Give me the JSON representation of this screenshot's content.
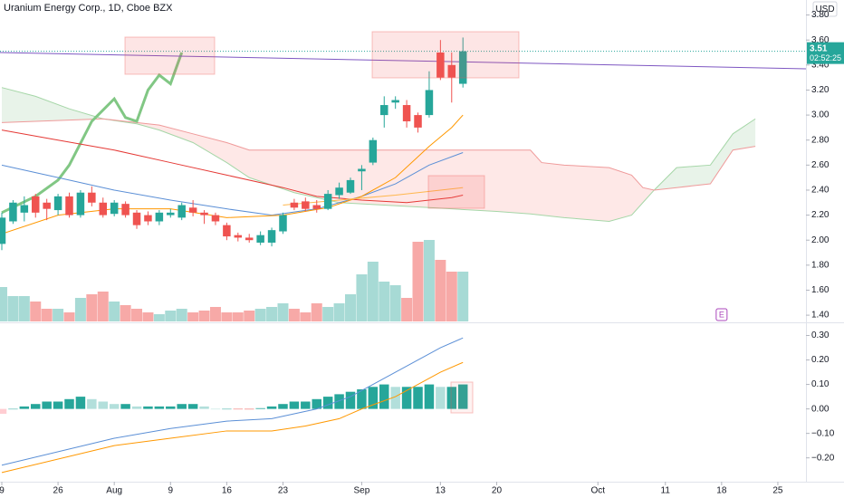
{
  "chart_data": [
    {
      "type": "candlestick",
      "title": "Uranium Energy Corp., 1D, Cboe BZX",
      "currency": "USD",
      "up_color": "#26a69a",
      "down_color": "#ef5350",
      "volume_up_color": "#a7dad5",
      "volume_down_color": "#f7a9a7",
      "x": [
        0,
        1,
        2,
        3,
        4,
        5,
        6,
        7,
        8,
        9,
        10,
        11,
        12,
        13,
        14,
        15,
        16,
        17,
        18,
        19,
        20,
        21,
        22,
        23,
        24,
        25,
        26,
        27,
        28,
        29,
        30,
        31,
        32,
        33,
        34,
        35,
        36,
        37,
        38,
        39,
        40,
        41
      ],
      "open": [
        1.97,
        2.15,
        2.22,
        2.35,
        2.3,
        2.24,
        2.35,
        2.2,
        2.38,
        2.3,
        2.21,
        2.29,
        2.22,
        2.2,
        2.15,
        2.2,
        2.18,
        2.26,
        2.22,
        2.2,
        2.12,
        2.04,
        2.02,
        1.98,
        1.98,
        2.07,
        2.3,
        2.31,
        2.28,
        2.25,
        2.36,
        2.38,
        2.55,
        2.62,
        3.0,
        3.1,
        3.08,
        3.0,
        3.0,
        3.5,
        3.4,
        3.25
      ],
      "high": [
        2.22,
        2.32,
        2.35,
        2.37,
        2.33,
        2.37,
        2.38,
        2.4,
        2.43,
        2.34,
        2.32,
        2.31,
        2.24,
        2.23,
        2.24,
        2.25,
        2.3,
        2.32,
        2.24,
        2.22,
        2.14,
        2.06,
        2.05,
        2.07,
        2.1,
        2.22,
        2.33,
        2.34,
        2.32,
        2.4,
        2.46,
        2.5,
        2.6,
        2.82,
        3.15,
        3.15,
        3.12,
        3.02,
        3.35,
        3.6,
        3.5,
        3.62
      ],
      "low": [
        1.92,
        2.13,
        2.15,
        2.18,
        2.16,
        2.2,
        2.18,
        2.18,
        2.27,
        2.18,
        2.19,
        2.18,
        2.09,
        2.12,
        2.12,
        2.18,
        2.16,
        2.19,
        2.13,
        2.12,
        2.0,
        1.99,
        1.98,
        1.96,
        1.95,
        2.05,
        2.24,
        2.23,
        2.22,
        2.24,
        2.33,
        2.37,
        2.4,
        2.6,
        2.9,
        3.05,
        2.9,
        2.86,
        2.98,
        3.28,
        3.1,
        3.22
      ],
      "close": [
        2.18,
        2.3,
        2.28,
        2.22,
        2.25,
        2.35,
        2.2,
        2.38,
        2.3,
        2.2,
        2.3,
        2.2,
        2.12,
        2.15,
        2.22,
        2.22,
        2.28,
        2.22,
        2.2,
        2.15,
        2.03,
        2.02,
        2.0,
        2.04,
        2.08,
        2.2,
        2.26,
        2.25,
        2.25,
        2.37,
        2.42,
        2.48,
        2.57,
        2.8,
        3.08,
        3.12,
        2.95,
        2.9,
        3.2,
        3.3,
        3.3,
        3.51
      ],
      "volume": [
        3.8,
        2.8,
        2.8,
        2.2,
        1.4,
        1.4,
        1.0,
        2.6,
        3.0,
        3.3,
        2.2,
        1.8,
        1.4,
        1.0,
        0.8,
        1.2,
        1.4,
        1.0,
        1.2,
        1.6,
        1.0,
        1.0,
        1.2,
        1.4,
        1.6,
        2.0,
        1.4,
        1.0,
        2.0,
        1.6,
        2.0,
        3.0,
        5.2,
        6.6,
        4.4,
        4.0,
        2.6,
        8.8,
        9.0,
        6.8,
        5.5,
        5.5
      ],
      "cloud": {
        "up_color": "rgba(67,160,71,0.12)",
        "down_color": "rgba(244,67,54,0.12)",
        "up_line": "#a5d6a7",
        "down_line": "#ef9a9a",
        "x": [
          0,
          3,
          6,
          9,
          12,
          14,
          17,
          20,
          22,
          26,
          30,
          36,
          40,
          44,
          47,
          48,
          50,
          54,
          56,
          57,
          58,
          60,
          63,
          65,
          67
        ],
        "span_a": [
          3.22,
          3.15,
          3.05,
          2.97,
          2.93,
          2.88,
          2.78,
          2.62,
          2.5,
          2.38,
          2.3,
          2.27,
          2.25,
          2.23,
          2.21,
          2.2,
          2.18,
          2.15,
          2.2,
          2.3,
          2.4,
          2.58,
          2.6,
          2.85,
          2.97
        ],
        "span_b": [
          2.94,
          2.95,
          2.96,
          2.97,
          2.94,
          2.92,
          2.85,
          2.78,
          2.72,
          2.72,
          2.72,
          2.72,
          2.72,
          2.72,
          2.72,
          2.62,
          2.6,
          2.58,
          2.52,
          2.42,
          2.4,
          2.42,
          2.45,
          2.72,
          2.75
        ]
      },
      "lines": [
        {
          "color": "#81c784",
          "width": 3,
          "x": [
            0,
            3,
            5,
            6,
            8,
            10,
            11,
            12,
            13,
            14,
            15,
            16
          ],
          "values": [
            2.22,
            2.35,
            2.48,
            2.6,
            2.95,
            3.13,
            2.98,
            2.95,
            3.2,
            3.32,
            3.25,
            3.5
          ]
        },
        {
          "color": "#5b8fd6",
          "width": 1,
          "x": [
            0,
            5,
            10,
            15,
            20,
            24,
            28,
            32,
            35,
            38,
            41
          ],
          "values": [
            2.6,
            2.5,
            2.4,
            2.32,
            2.25,
            2.2,
            2.25,
            2.35,
            2.45,
            2.6,
            2.7
          ]
        },
        {
          "color": "#e53935",
          "width": 1,
          "x": [
            0,
            5,
            10,
            15,
            20,
            25,
            28,
            32,
            36,
            40,
            41
          ],
          "values": [
            2.88,
            2.8,
            2.72,
            2.62,
            2.52,
            2.42,
            2.35,
            2.32,
            2.3,
            2.34,
            2.36
          ]
        },
        {
          "color": "#ff9800",
          "width": 1,
          "x": [
            0,
            5,
            10,
            15,
            20,
            25,
            29,
            32,
            35,
            38,
            40,
            41
          ],
          "values": [
            2.05,
            2.2,
            2.25,
            2.25,
            2.18,
            2.2,
            2.26,
            2.35,
            2.5,
            2.75,
            2.9,
            3.0
          ]
        },
        {
          "color": "#ffb74d",
          "width": 1,
          "x": [
            25,
            30,
            35,
            41
          ],
          "values": [
            2.28,
            2.32,
            2.36,
            2.42
          ]
        }
      ],
      "trend_line": {
        "color": "#7e57c2",
        "x": [
          -0.16,
          71.5
        ],
        "values": [
          3.5,
          3.37
        ]
      },
      "last_price": 3.51,
      "countdown": "02:52:25",
      "earnings": {
        "x": 64,
        "label": "E"
      },
      "xlim": [
        -0.16,
        71.5
      ],
      "xticks": [
        {
          "value": 0,
          "label": "9"
        },
        {
          "value": 5,
          "label": "26"
        },
        {
          "value": 10,
          "label": "Aug"
        },
        {
          "value": 15,
          "label": "9"
        },
        {
          "value": 20,
          "label": "16"
        },
        {
          "value": 25,
          "label": "23"
        },
        {
          "value": 32,
          "label": "Sep"
        },
        {
          "value": 39,
          "label": "13"
        },
        {
          "value": 44,
          "label": "20"
        },
        {
          "value": 53,
          "label": "Oct"
        },
        {
          "value": 59,
          "label": "11"
        },
        {
          "value": 64,
          "label": "18"
        },
        {
          "value": 69,
          "label": "25"
        }
      ],
      "ylim": [
        1.35,
        3.92
      ],
      "yticks": [
        {
          "value": 1.4,
          "label": "1.40"
        },
        {
          "value": 1.6,
          "label": "1.60"
        },
        {
          "value": 1.8,
          "label": "1.80"
        },
        {
          "value": 2.0,
          "label": "2.00"
        },
        {
          "value": 2.2,
          "label": "2.20"
        },
        {
          "value": 2.4,
          "label": "2.40"
        },
        {
          "value": 2.6,
          "label": "2.60"
        },
        {
          "value": 2.8,
          "label": "2.80"
        },
        {
          "value": 3.0,
          "label": "3.00"
        },
        {
          "value": 3.2,
          "label": "3.20"
        },
        {
          "value": 3.4,
          "label": "3.40"
        },
        {
          "value": 3.6,
          "label": "3.60"
        },
        {
          "value": 3.8,
          "label": "3.80"
        }
      ]
    },
    {
      "type": "macd",
      "histogram": {
        "colors": [
          "#26a69a",
          "#b2dfdb",
          "#ffcdd2",
          "#ef5350"
        ],
        "x": [
          0,
          1,
          2,
          3,
          4,
          5,
          6,
          7,
          8,
          9,
          10,
          11,
          12,
          13,
          14,
          15,
          16,
          17,
          18,
          19,
          20,
          21,
          22,
          23,
          24,
          25,
          26,
          27,
          28,
          29,
          30,
          31,
          32,
          33,
          34,
          35,
          36,
          37,
          38,
          39,
          40,
          41
        ],
        "values": [
          -0.02,
          0.0,
          0.01,
          0.02,
          0.03,
          0.03,
          0.04,
          0.05,
          0.04,
          0.03,
          0.02,
          0.02,
          0.01,
          0.01,
          0.01,
          0.01,
          0.02,
          0.02,
          0.01,
          0.0,
          0.0,
          -0.001,
          -0.002,
          0.003,
          0.01,
          0.02,
          0.03,
          0.03,
          0.04,
          0.05,
          0.06,
          0.07,
          0.08,
          0.09,
          0.1,
          0.09,
          0.09,
          0.09,
          0.1,
          0.09,
          0.09,
          0.1
        ]
      },
      "lines": [
        {
          "color": "#5b8fd6",
          "x": [
            0,
            10,
            15,
            20,
            24,
            28,
            31,
            33,
            35,
            37,
            39,
            41
          ],
          "values": [
            -0.23,
            -0.12,
            -0.08,
            -0.05,
            -0.04,
            0.0,
            0.05,
            0.1,
            0.15,
            0.2,
            0.25,
            0.29
          ]
        },
        {
          "color": "#ff9800",
          "x": [
            0,
            10,
            15,
            20,
            24,
            27,
            30,
            32,
            35,
            37,
            39,
            41
          ],
          "values": [
            -0.26,
            -0.15,
            -0.12,
            -0.09,
            -0.09,
            -0.07,
            -0.04,
            0.0,
            0.05,
            0.1,
            0.15,
            0.19
          ]
        }
      ],
      "ylim": [
        -0.29,
        0.35
      ],
      "yticks": [
        {
          "value": -0.2,
          "label": "−0.20"
        },
        {
          "value": -0.1,
          "label": "−0.10"
        },
        {
          "value": 0,
          "label": "0.00"
        },
        {
          "value": 0.1,
          "label": "0.10"
        },
        {
          "value": 0.2,
          "label": "0.20"
        },
        {
          "value": 0.3,
          "label": "0.30"
        }
      ]
    }
  ]
}
